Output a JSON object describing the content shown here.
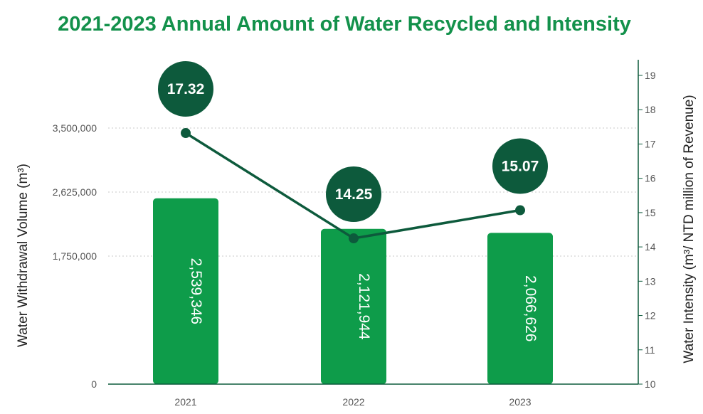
{
  "title": "2021-2023 Annual Amount of Water Recycled and Intensity",
  "colors": {
    "bar": "#0e9c4a",
    "line": "#0d5a3c",
    "bubble": "#0d5a3c",
    "title": "#13914b",
    "axis": "#0d5a3c",
    "grid": "#c8c8c8"
  },
  "chart_data": {
    "type": "bar",
    "categories": [
      "2021",
      "2022",
      "2023"
    ],
    "title": "2021-2023 Annual Amount of Water Recycled and Intensity",
    "xlabel": "",
    "ylabel": "Water Withdrawal Volume (m³)",
    "ylim": [
      0,
      3500000
    ],
    "y_ticks": [
      "0",
      "1,750,000",
      "2,625,000",
      "3,500,000"
    ],
    "grid": true,
    "series": [
      {
        "type": "bar",
        "axis": "left",
        "values": [
          2539346,
          2121944,
          2066626
        ],
        "labels": [
          "2,539,346",
          "2,121,944",
          "2,066,626"
        ]
      },
      {
        "type": "line",
        "axis": "right",
        "values": [
          17.32,
          14.25,
          15.07
        ],
        "labels": [
          "17.32",
          "14.25",
          "15.07"
        ]
      }
    ],
    "y2label": "Water Intensity (m³/ NTD million of Revenue)",
    "y2lim": [
      10,
      19
    ],
    "y2_ticks": [
      "10",
      "11",
      "12",
      "13",
      "14",
      "15",
      "16",
      "17",
      "18",
      "19"
    ]
  }
}
